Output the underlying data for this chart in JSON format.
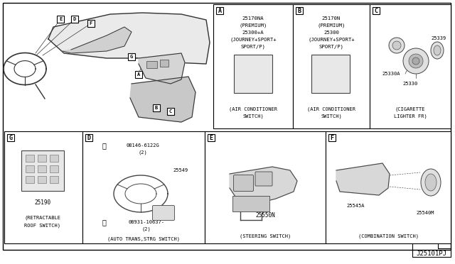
{
  "bg_color": "#ffffff",
  "border_color": "#000000",
  "text_color": "#000000",
  "fig_width": 6.4,
  "fig_height": 3.72,
  "dpi": 100,
  "title_text": "J25101PJ",
  "panel_A_lines": [
    "25170NA",
    "(PREMIUM)",
    "25300+A",
    "(JOURNEY+SPORT+",
    "SPORT/P)"
  ],
  "panel_A_caption": [
    "(AIR CONDITIONER",
    "SWITCH)"
  ],
  "panel_B_lines": [
    "25170N",
    "(PREMIUM)",
    "25300",
    "(JOURNEY+SPORT+",
    "SPORT/P)"
  ],
  "panel_B_caption": [
    "(AIR CONDITIONER",
    "SWITCH)"
  ],
  "panel_C_parts": [
    "25339",
    "25330A",
    "25330"
  ],
  "panel_C_caption": [
    "(CIGARETTE",
    "LIGHTER FR)"
  ],
  "panel_D_lines": [
    "08146-6122G",
    "(2)",
    "25549",
    "08931-10637-",
    "(2)"
  ],
  "panel_D_caption": "(AUTO TRANS,STRG SWITCH)",
  "panel_E_part": "25550N",
  "panel_E_caption": "(STEERING SWITCH)",
  "panel_F_parts": [
    "25545A",
    "25540M"
  ],
  "panel_F_caption": "(COMBINATION SWITCH)",
  "panel_G_part": "25190",
  "panel_G_caption": [
    "(RETRACTABLE",
    "ROOF SWITCH)"
  ],
  "callout_labels": [
    "E",
    "D",
    "F",
    "A",
    "G",
    "B",
    "C"
  ]
}
